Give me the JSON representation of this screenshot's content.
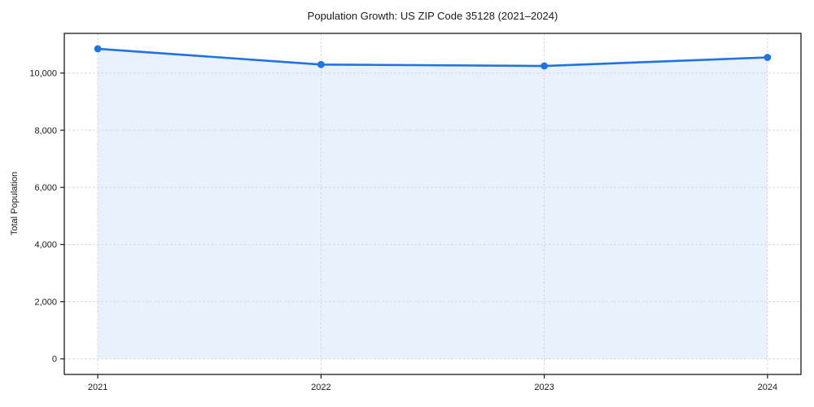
{
  "window": {
    "background": "#ffffff"
  },
  "chart_data": {
    "type": "line",
    "title": "Population Growth: US ZIP Code 35128 (2021–2024)",
    "xlabel": "",
    "ylabel": "Total Population",
    "x": [
      2021,
      2022,
      2023,
      2024
    ],
    "categories": [
      "2021",
      "2022",
      "2023",
      "2024"
    ],
    "series": [
      {
        "name": "Total Population",
        "values": [
          10850,
          10300,
          10250,
          10550
        ]
      }
    ],
    "marker": "circle",
    "area_fill": true,
    "grid": true,
    "grid_style": "dashed",
    "legend": "none",
    "xlim": [
      2020.85,
      2024.15
    ],
    "ylim": [
      -545,
      11390
    ],
    "xticks": {
      "values": [
        2021,
        2022,
        2023,
        2024
      ],
      "labels": [
        "2021",
        "2022",
        "2023",
        "2024"
      ]
    },
    "yticks": {
      "values": [
        0,
        2000,
        4000,
        6000,
        8000,
        10000
      ],
      "labels": [
        "0",
        "2,000",
        "4,000",
        "6,000",
        "8,000",
        "10,000"
      ]
    },
    "colors": {
      "line": "#2172e3",
      "fill": "#2172e3",
      "fill_opacity": 0.1,
      "grid": "#d8d8d8",
      "spine": "#1a1a1a",
      "text": "#1a1a1a",
      "background": "#ffffff"
    }
  }
}
